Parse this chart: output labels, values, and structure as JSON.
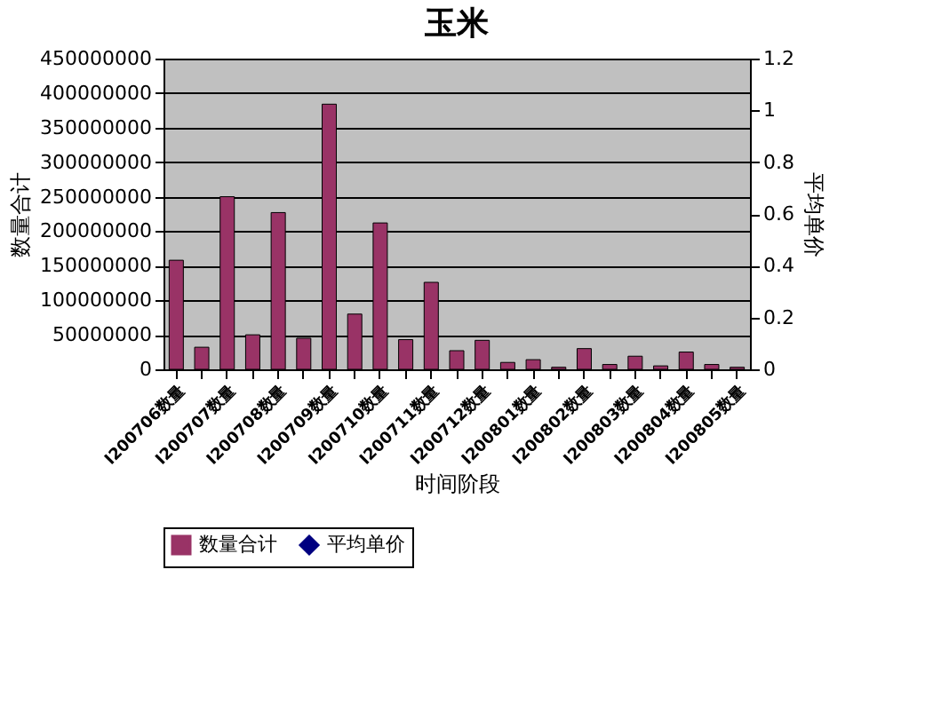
{
  "chart_data": {
    "type": "bar",
    "title": "玉米",
    "xlabel": "时间阶段",
    "ylabel": "数量合计",
    "y2label": "平均单价",
    "categories": [
      "I200706数量",
      null,
      "I200707数量",
      null,
      "I200708数量",
      null,
      "I200709数量",
      null,
      "I200710数量",
      null,
      "I200711数量",
      null,
      "I200712数量",
      null,
      "I200801数量",
      null,
      "I200802数量",
      null,
      "I200803数量",
      null,
      "I200804数量",
      null,
      "I200805数量"
    ],
    "series": [
      {
        "name": "数量合计",
        "color": "#993366",
        "values": [
          158000000,
          32000000,
          250000000,
          50000000,
          227000000,
          45000000,
          384000000,
          80000000,
          212000000,
          43000000,
          126000000,
          27000000,
          42000000,
          10000000,
          14000000,
          3000000,
          30000000,
          7000000,
          19000000,
          5000000,
          25000000,
          7000000,
          3000000
        ]
      },
      {
        "name": "平均单价",
        "type": "line",
        "axis": "y2",
        "color": "#000080",
        "marker": "diamond",
        "values": [
          null,
          null,
          null,
          null,
          null,
          null,
          null,
          null,
          null,
          null,
          null,
          null,
          null,
          null,
          null,
          null,
          null,
          null,
          null,
          null,
          null,
          null,
          null
        ]
      }
    ],
    "ylim": [
      0,
      450000000
    ],
    "yticks": [
      0,
      50000000,
      100000000,
      150000000,
      200000000,
      250000000,
      300000000,
      350000000,
      400000000,
      450000000
    ],
    "y2lim": [
      0,
      1.2
    ],
    "y2ticks": [
      0,
      0.2,
      0.4,
      0.6,
      0.8,
      1,
      1.2
    ],
    "grid": "y",
    "legend": "bottom"
  }
}
